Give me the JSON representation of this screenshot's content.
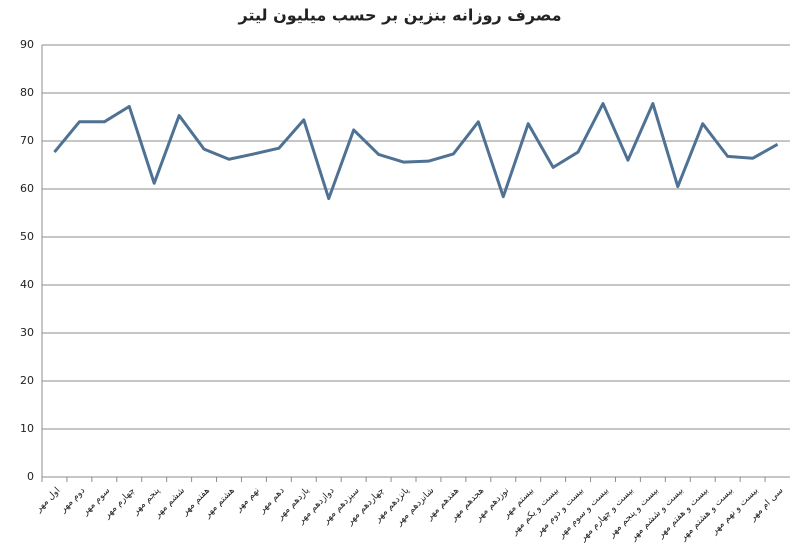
{
  "chart_data": {
    "type": "line",
    "title": "مصرف روزانه بنزین بر حسب میلیون لیتر",
    "categories": [
      "اول مهر",
      "دوم مهر",
      "سوم مهر",
      "چهارم مهر",
      "پنجم مهر",
      "ششم مهر",
      "هفتم مهر",
      "هشتم مهر",
      "نهم مهر",
      "دهم مهر",
      "یازدهم مهر",
      "دوازدهم مهر",
      "سیزدهم مهر",
      "چهاردهم مهر",
      "پانزدهم مهر",
      "شانزدهم مهر",
      "هفدهم مهر",
      "هجدهم مهر",
      "نوزدهم مهر",
      "بیستم مهر",
      "بیست و یکم مهر",
      "بیست و دوم مهر",
      "بیست و سوم مهر",
      "بیست و چهارم مهر",
      "بیست و پنجم مهر",
      "بیست و ششم مهر",
      "بیست و هفتم مهر",
      "بیست و هشتم مهر",
      "بیست و نهم مهر",
      "سی ام مهر"
    ],
    "values": [
      67.7,
      74,
      74,
      77.2,
      61.2,
      75.3,
      68.3,
      66.2,
      67.3,
      68.5,
      74.4,
      58,
      72.3,
      67.2,
      65.6,
      65.8,
      67.3,
      74,
      58.4,
      73.6,
      64.5,
      67.7,
      77.8,
      66,
      77.8,
      60.5,
      73.6,
      66.8,
      66.4,
      69.3
    ],
    "color": "#4f7194",
    "ylim": [
      0,
      90
    ],
    "yticks": [
      0,
      10,
      20,
      30,
      40,
      50,
      60,
      70,
      80,
      90
    ],
    "grid": true
  }
}
